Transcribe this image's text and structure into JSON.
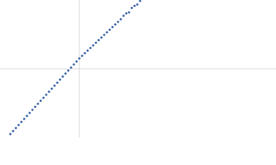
{
  "chart_data": {
    "type": "scatter",
    "x": [
      -100,
      -96,
      -92,
      -88,
      -84,
      -80,
      -76,
      -72,
      -68,
      -64,
      -60,
      -56,
      -52,
      -48,
      -44,
      -40,
      -36,
      -32,
      -28,
      -24,
      -20,
      -16,
      -12,
      -8,
      -4,
      0,
      4,
      8,
      12,
      16,
      20,
      24,
      28,
      32,
      36,
      40,
      44,
      48,
      52,
      56,
      60,
      64,
      68,
      72,
      76,
      80,
      84,
      88
    ],
    "values": [
      -95,
      -90.6,
      -86.2,
      -81.8,
      -77.4,
      -73,
      -68.6,
      -64.2,
      -59.8,
      -55.4,
      -51,
      -46.6,
      -42.2,
      -37.8,
      -33.4,
      -29,
      -24.6,
      -20.2,
      -15.8,
      -11.4,
      -7,
      -2.6,
      1.8,
      6.2,
      10.6,
      15,
      18.8,
      22.6,
      26.4,
      30.2,
      34,
      37.8,
      41.6,
      45.4,
      49.2,
      53,
      56.8,
      60.6,
      64.4,
      68.2,
      72,
      77,
      80.5,
      82,
      88.5,
      91.5,
      93.5,
      98.6
    ],
    "color": "#3a63a8",
    "xlim": [
      -115,
      285
    ],
    "ylim": [
      -100,
      100
    ],
    "axis_lines": true
  }
}
